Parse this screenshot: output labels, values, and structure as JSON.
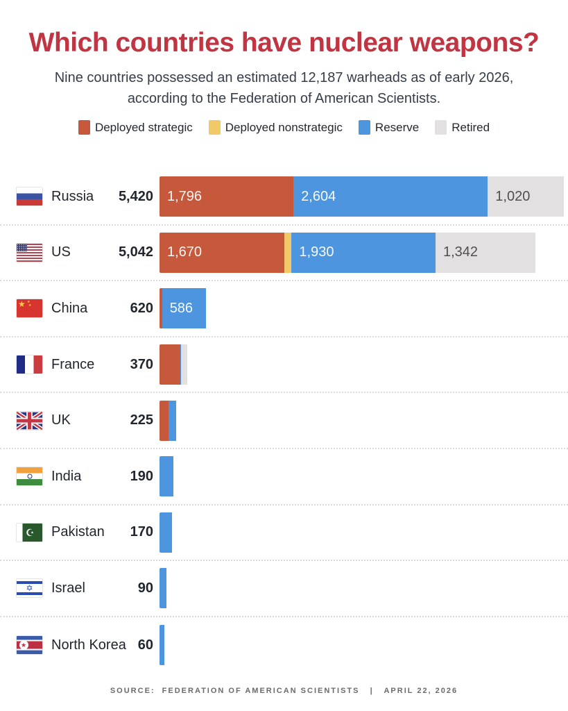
{
  "header": {
    "title": "Which countries have nuclear weapons?",
    "subtitle_line1": "Nine countries possessed an estimated 12,187 warheads as of early 2026,",
    "subtitle_line2": "according to the Federation of American Scientists."
  },
  "legend": [
    {
      "key": "strategic",
      "label": "Deployed strategic",
      "color": "#C6593B"
    },
    {
      "key": "nonstrategic",
      "label": "Deployed nonstrategic",
      "color": "#F3C967"
    },
    {
      "key": "reserve",
      "label": "Reserve",
      "color": "#4E95E0"
    },
    {
      "key": "retired",
      "label": "Retired",
      "color": "#E2E0E0"
    }
  ],
  "chart_data": {
    "type": "bar",
    "orientation": "horizontal",
    "stacked": true,
    "x_range": [
      0,
      5420
    ],
    "series_names": [
      "Deployed strategic",
      "Deployed nonstrategic",
      "Reserve",
      "Retired"
    ],
    "rows": [
      {
        "country": "Russia",
        "flag": "russia",
        "total": 5420,
        "total_label": "5,420",
        "segments": [
          {
            "type": "strategic",
            "value": 1796,
            "label": "1,796"
          },
          {
            "type": "reserve",
            "value": 2604,
            "label": "2,604"
          },
          {
            "type": "retired",
            "value": 1020,
            "label": "1,020"
          }
        ]
      },
      {
        "country": "US",
        "flag": "us",
        "total": 5042,
        "total_label": "5,042",
        "segments": [
          {
            "type": "strategic",
            "value": 1670,
            "label": "1,670"
          },
          {
            "type": "nonstrategic",
            "value": 100,
            "label": ""
          },
          {
            "type": "reserve",
            "value": 1930,
            "label": "1,930"
          },
          {
            "type": "retired",
            "value": 1342,
            "label": "1,342"
          }
        ]
      },
      {
        "country": "China",
        "flag": "china",
        "total": 620,
        "total_label": "620",
        "segments": [
          {
            "type": "strategic",
            "value": 34,
            "label": ""
          },
          {
            "type": "reserve",
            "value": 586,
            "label": "586"
          }
        ]
      },
      {
        "country": "France",
        "flag": "france",
        "total": 370,
        "total_label": "370",
        "segments": [
          {
            "type": "strategic",
            "value": 280,
            "label": ""
          },
          {
            "type": "reserve",
            "value": 10,
            "label": ""
          },
          {
            "type": "retired",
            "value": 80,
            "label": ""
          }
        ]
      },
      {
        "country": "UK",
        "flag": "uk",
        "total": 225,
        "total_label": "225",
        "segments": [
          {
            "type": "strategic",
            "value": 120,
            "label": ""
          },
          {
            "type": "reserve",
            "value": 105,
            "label": ""
          }
        ]
      },
      {
        "country": "India",
        "flag": "india",
        "total": 190,
        "total_label": "190",
        "segments": [
          {
            "type": "reserve",
            "value": 190,
            "label": ""
          }
        ]
      },
      {
        "country": "Pakistan",
        "flag": "pakistan",
        "total": 170,
        "total_label": "170",
        "segments": [
          {
            "type": "reserve",
            "value": 170,
            "label": ""
          }
        ]
      },
      {
        "country": "Israel",
        "flag": "israel",
        "total": 90,
        "total_label": "90",
        "segments": [
          {
            "type": "reserve",
            "value": 90,
            "label": ""
          }
        ]
      },
      {
        "country": "North Korea",
        "flag": "north-korea",
        "total": 60,
        "total_label": "60",
        "segments": [
          {
            "type": "reserve",
            "value": 60,
            "label": ""
          }
        ]
      }
    ]
  },
  "footer": {
    "text": "SOURCE:  FEDERATION OF AMERICAN SCIENTISTS   |   APRIL 22, 2026"
  },
  "colors": {
    "title": "#C13543",
    "subtitle": "#363D49",
    "text": "#21262E",
    "strategic": "#C6593B",
    "nonstrategic": "#F3C967",
    "reserve": "#4E95E0",
    "retired": "#E2E0E0",
    "retired_label": "#4F4F4F",
    "separator": "#DCDAD8",
    "source": "#6A6A6A"
  }
}
